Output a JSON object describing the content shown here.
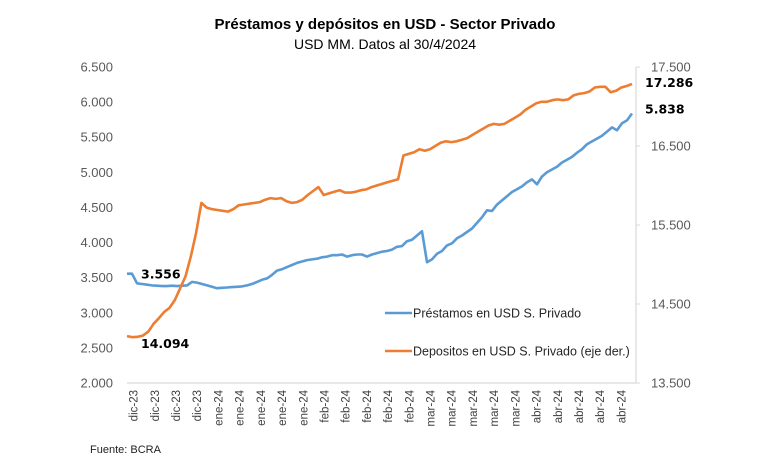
{
  "chart_data": {
    "type": "line",
    "title": "Préstamos y depósitos en USD - Sector Privado",
    "subtitle": "USD MM. Datos al 30/4/2024",
    "source": "Fuente: BCRA",
    "xlabel": "",
    "ylabel_left": "",
    "ylabel_right": "",
    "x_tick_labels": [
      "dic-23",
      "dic-23",
      "dic-23",
      "dic-23",
      "ene-24",
      "ene-24",
      "ene-24",
      "ene-24",
      "ene-24",
      "feb-24",
      "feb-24",
      "feb-24",
      "feb-24",
      "feb-24",
      "mar-24",
      "mar-24",
      "mar-24",
      "mar-24",
      "mar-24",
      "abr-24",
      "abr-24",
      "abr-24",
      "abr-24",
      "abr-24"
    ],
    "y_left": {
      "range": [
        2000,
        6500
      ],
      "ticks": [
        "2.000",
        "2.500",
        "3.000",
        "3.500",
        "4.000",
        "4.500",
        "5.000",
        "5.500",
        "6.000",
        "6.500"
      ],
      "tick_values": [
        2000,
        2500,
        3000,
        3500,
        4000,
        4500,
        5000,
        5500,
        6000,
        6500
      ]
    },
    "y_right": {
      "range": [
        13500,
        17500
      ],
      "ticks": [
        "13.500",
        "14.500",
        "15.500",
        "16.500",
        "17.500"
      ],
      "tick_values": [
        13500,
        14500,
        15500,
        16500,
        17500
      ]
    },
    "grid": false,
    "legend_position": "center-right",
    "series": [
      {
        "name": "Préstamos en USD S. Privado",
        "axis": "left",
        "color": "#5B9BD5",
        "start_label": "3.556",
        "end_label": "5.838",
        "values": [
          3556,
          3556,
          3420,
          3410,
          3400,
          3390,
          3385,
          3380,
          3380,
          3385,
          3380,
          3385,
          3390,
          3440,
          3430,
          3410,
          3390,
          3370,
          3350,
          3355,
          3360,
          3365,
          3370,
          3375,
          3390,
          3410,
          3440,
          3470,
          3490,
          3540,
          3600,
          3620,
          3650,
          3680,
          3710,
          3730,
          3750,
          3760,
          3770,
          3790,
          3800,
          3820,
          3820,
          3830,
          3800,
          3820,
          3830,
          3830,
          3800,
          3830,
          3850,
          3870,
          3880,
          3900,
          3940,
          3950,
          4020,
          4040,
          4100,
          4160,
          3720,
          3760,
          3840,
          3880,
          3960,
          3990,
          4060,
          4100,
          4150,
          4200,
          4280,
          4360,
          4460,
          4450,
          4540,
          4600,
          4660,
          4720,
          4760,
          4800,
          4860,
          4900,
          4830,
          4940,
          5000,
          5040,
          5080,
          5140,
          5180,
          5220,
          5280,
          5330,
          5400,
          5440,
          5480,
          5520,
          5580,
          5640,
          5600,
          5700,
          5740,
          5838
        ]
      },
      {
        "name": "Depositos en USD S. Privado (eje der.)",
        "axis": "right",
        "color": "#ED7D31",
        "start_label": "14.094",
        "end_label": "17.286",
        "values": [
          14094,
          14080,
          14085,
          14100,
          14150,
          14250,
          14320,
          14400,
          14450,
          14550,
          14700,
          14850,
          15100,
          15400,
          15780,
          15720,
          15700,
          15690,
          15680,
          15670,
          15700,
          15750,
          15760,
          15770,
          15780,
          15790,
          15820,
          15840,
          15830,
          15840,
          15800,
          15780,
          15790,
          15820,
          15880,
          15930,
          15980,
          15880,
          15900,
          15920,
          15940,
          15910,
          15910,
          15920,
          15940,
          15950,
          15980,
          16000,
          16020,
          16040,
          16060,
          16080,
          16380,
          16400,
          16420,
          16460,
          16440,
          16460,
          16500,
          16540,
          16560,
          16550,
          16560,
          16580,
          16600,
          16640,
          16680,
          16720,
          16760,
          16780,
          16770,
          16780,
          16820,
          16860,
          16900,
          16960,
          17000,
          17040,
          17060,
          17060,
          17080,
          17090,
          17080,
          17090,
          17140,
          17160,
          17170,
          17190,
          17240,
          17250,
          17250,
          17180,
          17200,
          17240,
          17260,
          17286
        ]
      }
    ]
  }
}
